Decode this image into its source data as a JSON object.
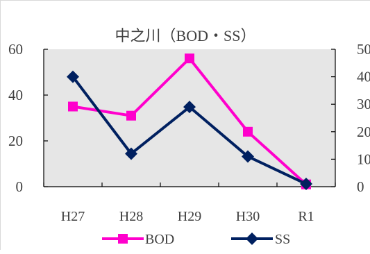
{
  "chart_data": {
    "type": "line",
    "title": "中之川（BOD・SS）",
    "categories": [
      "H27",
      "H28",
      "H29",
      "H30",
      "R1"
    ],
    "y_left": {
      "ylim": [
        0,
        60
      ],
      "ticks": [
        0,
        20,
        40,
        60
      ]
    },
    "y_right": {
      "ylim": [
        0,
        50
      ],
      "ticks": [
        0,
        10,
        20,
        30,
        40,
        50
      ]
    },
    "series": [
      {
        "name": "BOD",
        "axis": "left",
        "color": "#ff00cc",
        "marker": "square",
        "values": [
          35,
          31,
          56,
          24,
          1
        ]
      },
      {
        "name": "SS",
        "axis": "right",
        "color": "#002060",
        "marker": "diamond",
        "values": [
          40,
          12,
          29,
          11,
          1
        ]
      }
    ],
    "plot_background": "#e6e6e6",
    "legend_position": "bottom"
  }
}
